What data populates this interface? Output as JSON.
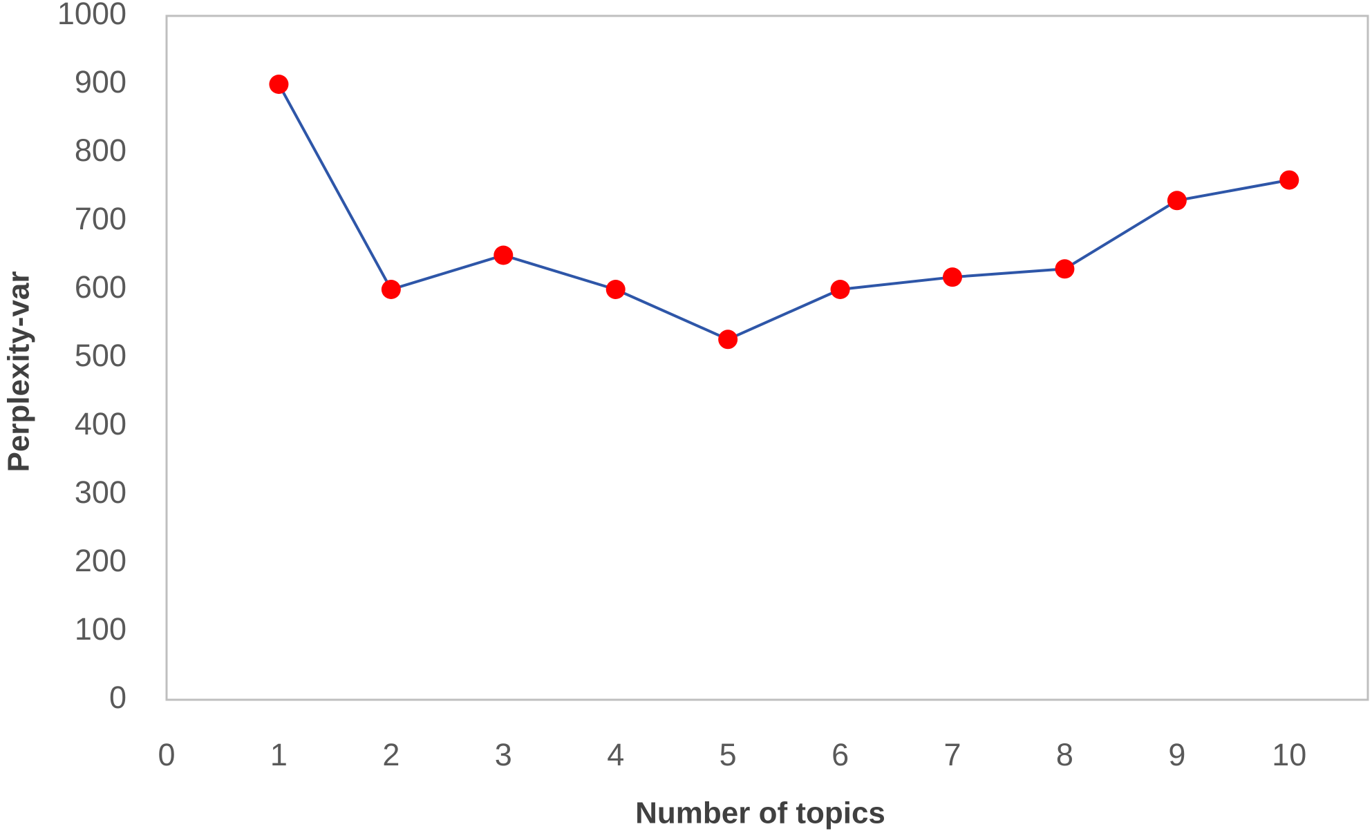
{
  "chart_data": {
    "type": "line",
    "x_label": "Number of topics",
    "y_label": "Perplexity-var",
    "x": [
      1,
      2,
      3,
      4,
      5,
      6,
      7,
      8,
      9,
      10
    ],
    "values": [
      900,
      600,
      650,
      600,
      527,
      600,
      618,
      630,
      730,
      760
    ],
    "color": "#2e56a8",
    "marker_color": "#ff0000",
    "xlim": [
      0,
      10.7
    ],
    "xticks": [
      0,
      1,
      2,
      3,
      4,
      5,
      6,
      7,
      8,
      9,
      10
    ],
    "ylim": [
      0,
      1000
    ],
    "yticks": [
      0,
      100,
      200,
      300,
      400,
      500,
      600,
      700,
      800,
      900,
      1000
    ]
  }
}
